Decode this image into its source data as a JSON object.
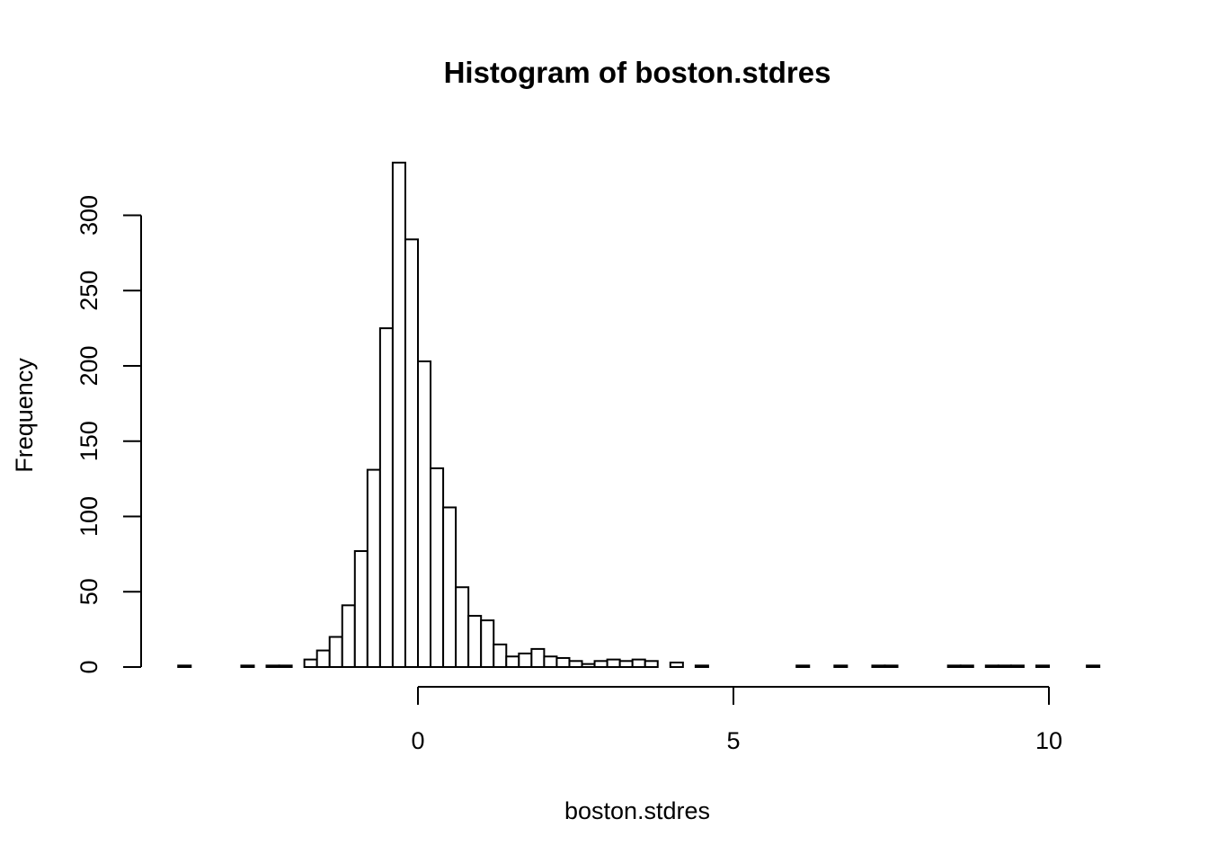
{
  "chart_data": {
    "type": "bar",
    "title": "Histogram of boston.stdres",
    "xlabel": "boston.stdres",
    "ylabel": "Frequency",
    "xlim": [
      -4.5,
      10.8
    ],
    "ylim": [
      0,
      335
    ],
    "x_ticks": [
      0,
      5,
      10
    ],
    "y_ticks": [
      0,
      50,
      100,
      150,
      200,
      250,
      300
    ],
    "bin_width": 0.2,
    "bins_start": [
      -3.8,
      -3.6,
      -3.4,
      -3.2,
      -3.0,
      -2.8,
      -2.6,
      -2.4,
      -2.2,
      -2.0,
      -1.8,
      -1.6,
      -1.4,
      -1.2,
      -1.0,
      -0.8,
      -0.6,
      -0.4,
      -0.2,
      0.0,
      0.2,
      0.4,
      0.6,
      0.8,
      1.0,
      1.2,
      1.4,
      1.6,
      1.8,
      2.0,
      2.2,
      2.4,
      2.6,
      2.8,
      3.0,
      3.2,
      3.4,
      3.6,
      3.8,
      4.0,
      4.2,
      4.4,
      4.6,
      4.8,
      5.0,
      5.2,
      5.4,
      5.6,
      5.8,
      6.0,
      6.2,
      6.4,
      6.6,
      6.8,
      7.0,
      7.2,
      7.4,
      7.6,
      7.8,
      8.0,
      8.2,
      8.4,
      8.6,
      8.8,
      9.0,
      9.2,
      9.4,
      9.6,
      9.8,
      10.0,
      10.2,
      10.4,
      10.6
    ],
    "counts": [
      1,
      0,
      0,
      0,
      0,
      1,
      0,
      1,
      1,
      0,
      5,
      11,
      20,
      41,
      77,
      131,
      225,
      335,
      284,
      203,
      132,
      106,
      53,
      34,
      31,
      15,
      7,
      9,
      12,
      7,
      6,
      4,
      2,
      4,
      5,
      4,
      5,
      4,
      0,
      3,
      0,
      1,
      0,
      0,
      0,
      0,
      0,
      0,
      0,
      1,
      0,
      0,
      1,
      0,
      0,
      1,
      1,
      0,
      0,
      0,
      0,
      1,
      1,
      0,
      1,
      1,
      1,
      0,
      1,
      0,
      0,
      0,
      1
    ],
    "grid": false,
    "legend": false
  }
}
